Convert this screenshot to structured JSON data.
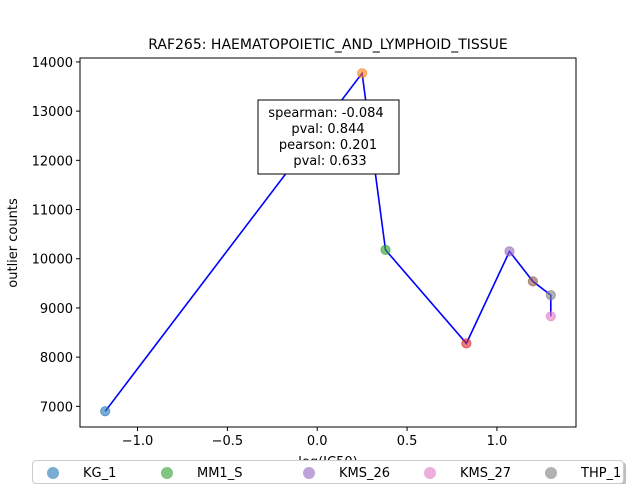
{
  "chart_data": {
    "type": "scatter",
    "title": "RAF265: HAEMATOPOIETIC_AND_LYMPHOID_TISSUE",
    "xlabel": "log(IC50)",
    "ylabel": "outlier counts",
    "xlim": [
      -1.32,
      1.44
    ],
    "ylim": [
      6580,
      14080
    ],
    "xticks": [
      -1.0,
      -0.5,
      0.0,
      0.5,
      1.0
    ],
    "xtick_labels": [
      "−1.0",
      "−0.5",
      "0.0",
      "0.5",
      "1.0"
    ],
    "yticks": [
      7000,
      8000,
      9000,
      10000,
      11000,
      12000,
      13000,
      14000
    ],
    "ytick_labels": [
      "7000",
      "8000",
      "9000",
      "10000",
      "11000",
      "12000",
      "13000",
      "14000"
    ],
    "grid": false,
    "legend_position": "bottom",
    "line_color": "#0000ff",
    "points": [
      {
        "name": "KG_1",
        "x": -1.18,
        "y": 6900,
        "color": "#1f77b4"
      },
      {
        "name": "",
        "x": 0.25,
        "y": 13770,
        "color": "#ff7f0e"
      },
      {
        "name": "MM1_S",
        "x": 0.38,
        "y": 10180,
        "color": "#2ca02c"
      },
      {
        "name": "",
        "x": 0.83,
        "y": 8280,
        "color": "#d62728"
      },
      {
        "name": "KMS_26",
        "x": 1.07,
        "y": 10150,
        "color": "#9467bd"
      },
      {
        "name": "",
        "x": 1.2,
        "y": 9540,
        "color": "#8c564b"
      },
      {
        "name": "KMS_27",
        "x": 1.3,
        "y": 8830,
        "color": "#e377c2"
      },
      {
        "name": "THP_1",
        "x": 1.3,
        "y": 9260,
        "color": "#7f7f7f"
      }
    ],
    "line_order": [
      0,
      1,
      2,
      3,
      4,
      5,
      7,
      6
    ],
    "annotation": [
      "spearman: -0.084",
      "pval: 0.844",
      "pearson: 0.201",
      "pval: 0.633"
    ]
  },
  "legend": [
    {
      "label": "KG_1",
      "color": "#1f77b4"
    },
    {
      "label": "MM1_S",
      "color": "#2ca02c"
    },
    {
      "label": "KMS_26",
      "color": "#9467bd"
    },
    {
      "label": "KMS_27",
      "color": "#e377c2"
    },
    {
      "label": "THP_1",
      "color": "#7f7f7f"
    }
  ]
}
